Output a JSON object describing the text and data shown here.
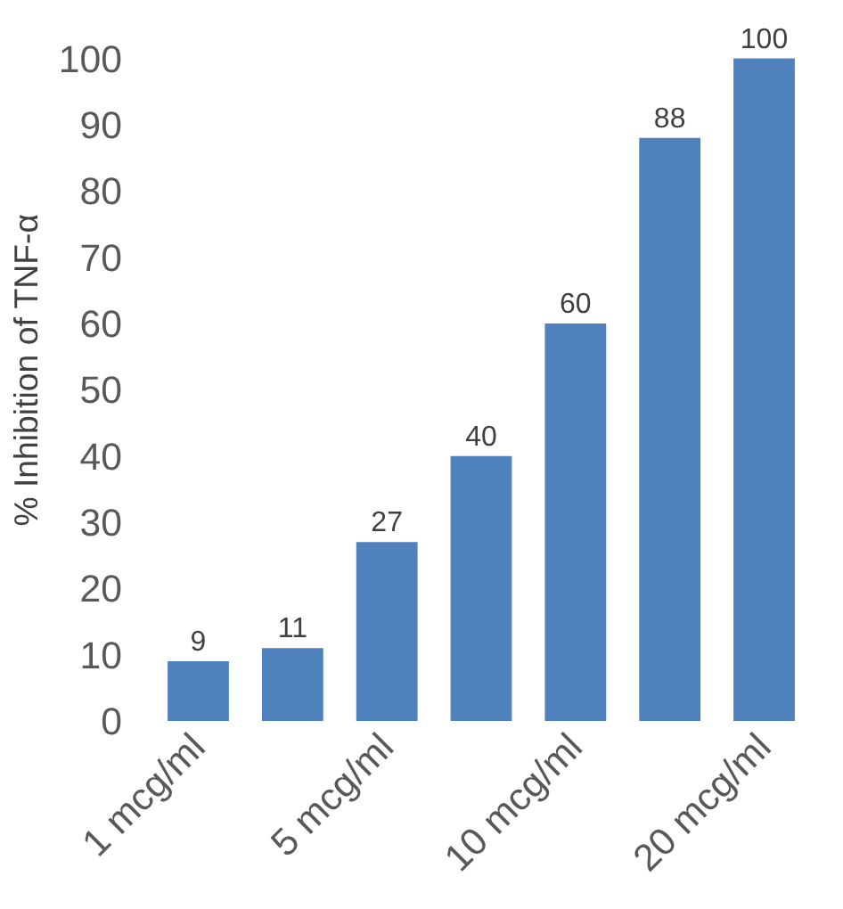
{
  "chart_data": {
    "type": "bar",
    "ylabel": "% Inhibition of TNF-α",
    "categories": [
      "1 mcg/ml",
      null,
      "5 mcg/ml",
      null,
      "10 mcg/ml",
      null,
      "20 mcg/ml"
    ],
    "values": [
      9,
      11,
      27,
      40,
      60,
      88,
      100
    ],
    "color": "#4f81bd",
    "ylim": [
      0,
      100
    ],
    "yticks": [
      0,
      10,
      20,
      30,
      40,
      50,
      60,
      70,
      80,
      90,
      100
    ],
    "grid": false,
    "data_labels": true
  }
}
